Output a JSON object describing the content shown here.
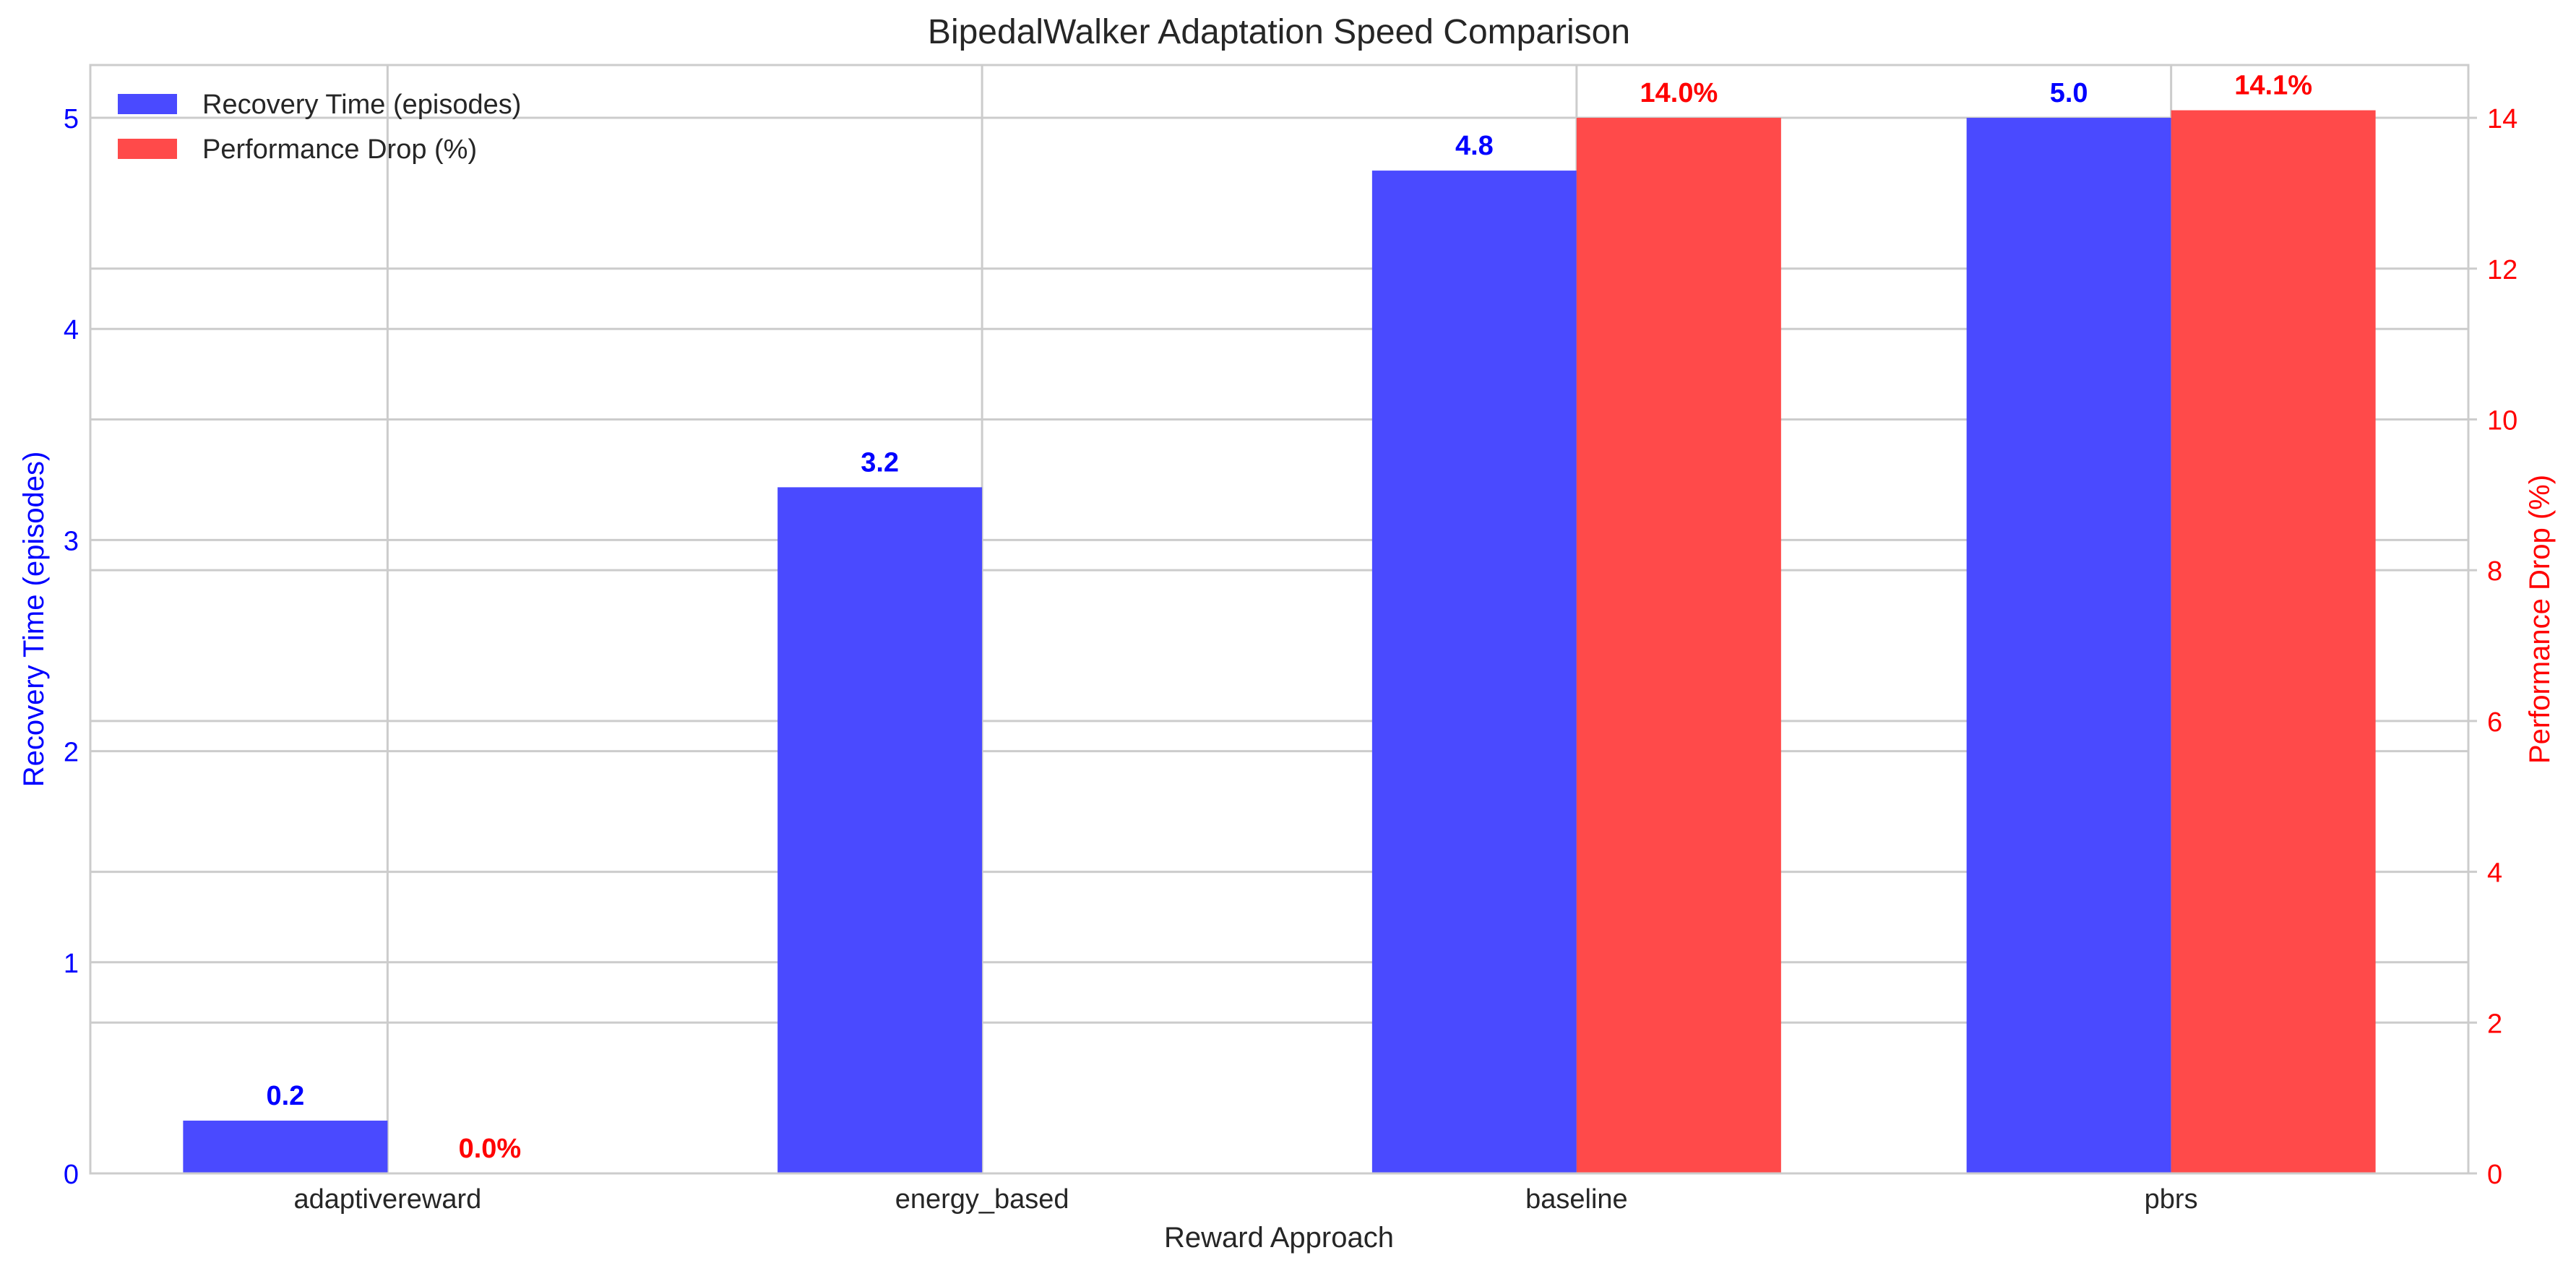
{
  "chart_data": {
    "type": "bar",
    "title": "BipedalWalker Adaptation Speed Comparison",
    "xlabel": "Reward Approach",
    "categories": [
      "adaptivereward",
      "energy_based",
      "baseline",
      "pbrs"
    ],
    "left_axis": {
      "label": "Recovery Time (episodes)",
      "ylim": [
        0,
        5.25
      ],
      "ticks": [
        0,
        1,
        2,
        3,
        4,
        5
      ],
      "color": "#0000ff"
    },
    "right_axis": {
      "label": "Performance Drop (%)",
      "ylim": [
        0,
        14.7
      ],
      "ticks": [
        0,
        2,
        4,
        6,
        8,
        10,
        12,
        14
      ],
      "color": "#ff0000"
    },
    "series": [
      {
        "name": "Recovery Time (episodes)",
        "axis": "left",
        "color": "#4a4aff",
        "label_color": "#0000ff",
        "values": [
          0.25,
          3.25,
          4.75,
          5.0
        ],
        "labels": [
          "0.2",
          "3.2",
          "4.8",
          "5.0"
        ]
      },
      {
        "name": "Performance Drop (%)",
        "axis": "right",
        "color": "#ff4a4a",
        "label_color": "#ff0000",
        "values": [
          0.0,
          null,
          14.0,
          14.1
        ],
        "labels": [
          "0.0%",
          "",
          "14.0%",
          "14.1%"
        ]
      }
    ],
    "legend": "top-left",
    "grid": true
  }
}
